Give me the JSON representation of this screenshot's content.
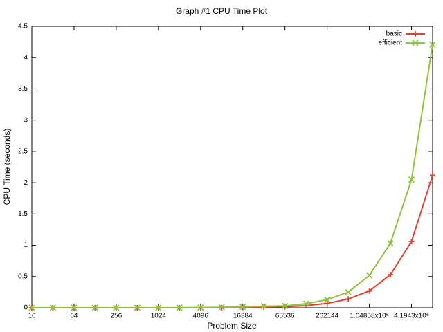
{
  "chart_data": {
    "type": "line",
    "title": "Graph #1 CPU Time Plot",
    "xlabel": "Problem Size",
    "ylabel": "CPU Time (seconds)",
    "xscale": "log",
    "legend": "upper right",
    "x": [
      16,
      32,
      64,
      128,
      256,
      512,
      1024,
      2048,
      4096,
      8192,
      16384,
      32768,
      65536,
      131072,
      262144,
      524288,
      1048576,
      2097152,
      4194304,
      8388608
    ],
    "series": [
      {
        "name": "basic",
        "color": "#e0402f",
        "marker": "+",
        "values": [
          0,
          0,
          0,
          0,
          0,
          0,
          0,
          0,
          0.001,
          0.002,
          0.004,
          0.008,
          0.017,
          0.035,
          0.07,
          0.14,
          0.27,
          0.53,
          1.06,
          2.12
        ]
      },
      {
        "name": "efficient",
        "color": "#8cc43f",
        "marker": "x",
        "values": [
          0.001,
          0.001,
          0.001,
          0.001,
          0.001,
          0.001,
          0.001,
          0.002,
          0.004,
          0.008,
          0.015,
          0.025,
          0.03,
          0.065,
          0.13,
          0.25,
          0.52,
          1.03,
          2.05,
          4.21
        ]
      }
    ],
    "xlim": [
      16,
      8388608
    ],
    "xticks": [
      16,
      64,
      256,
      1024,
      4096,
      16384,
      65536,
      262144,
      {
        "value": 1048576,
        "label": "1.04858x10⁶"
      },
      {
        "value": 4194304,
        "label": "4.1943x10⁶"
      }
    ],
    "ylim": [
      0,
      4.5
    ],
    "yticks": [
      0,
      0.5,
      1,
      1.5,
      2,
      2.5,
      3,
      3.5,
      4,
      4.5
    ]
  }
}
